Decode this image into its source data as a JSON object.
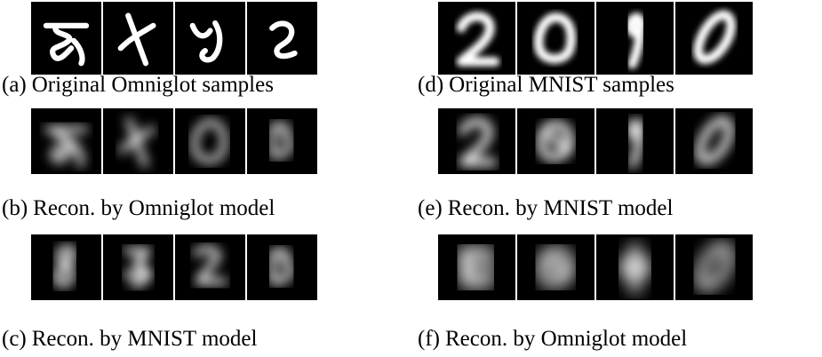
{
  "figure": {
    "panels": [
      {
        "label": "(a)",
        "caption": "Original Omniglot samples"
      },
      {
        "label": "(b)",
        "caption": "Recon. by Omniglot model"
      },
      {
        "label": "(c)",
        "caption": "Recon. by MNIST model"
      },
      {
        "label": "(d)",
        "caption": "Original MNIST samples"
      },
      {
        "label": "(e)",
        "caption": "Recon. by MNIST model"
      },
      {
        "label": "(f)",
        "caption": "Recon. by Omniglot model"
      }
    ]
  }
}
